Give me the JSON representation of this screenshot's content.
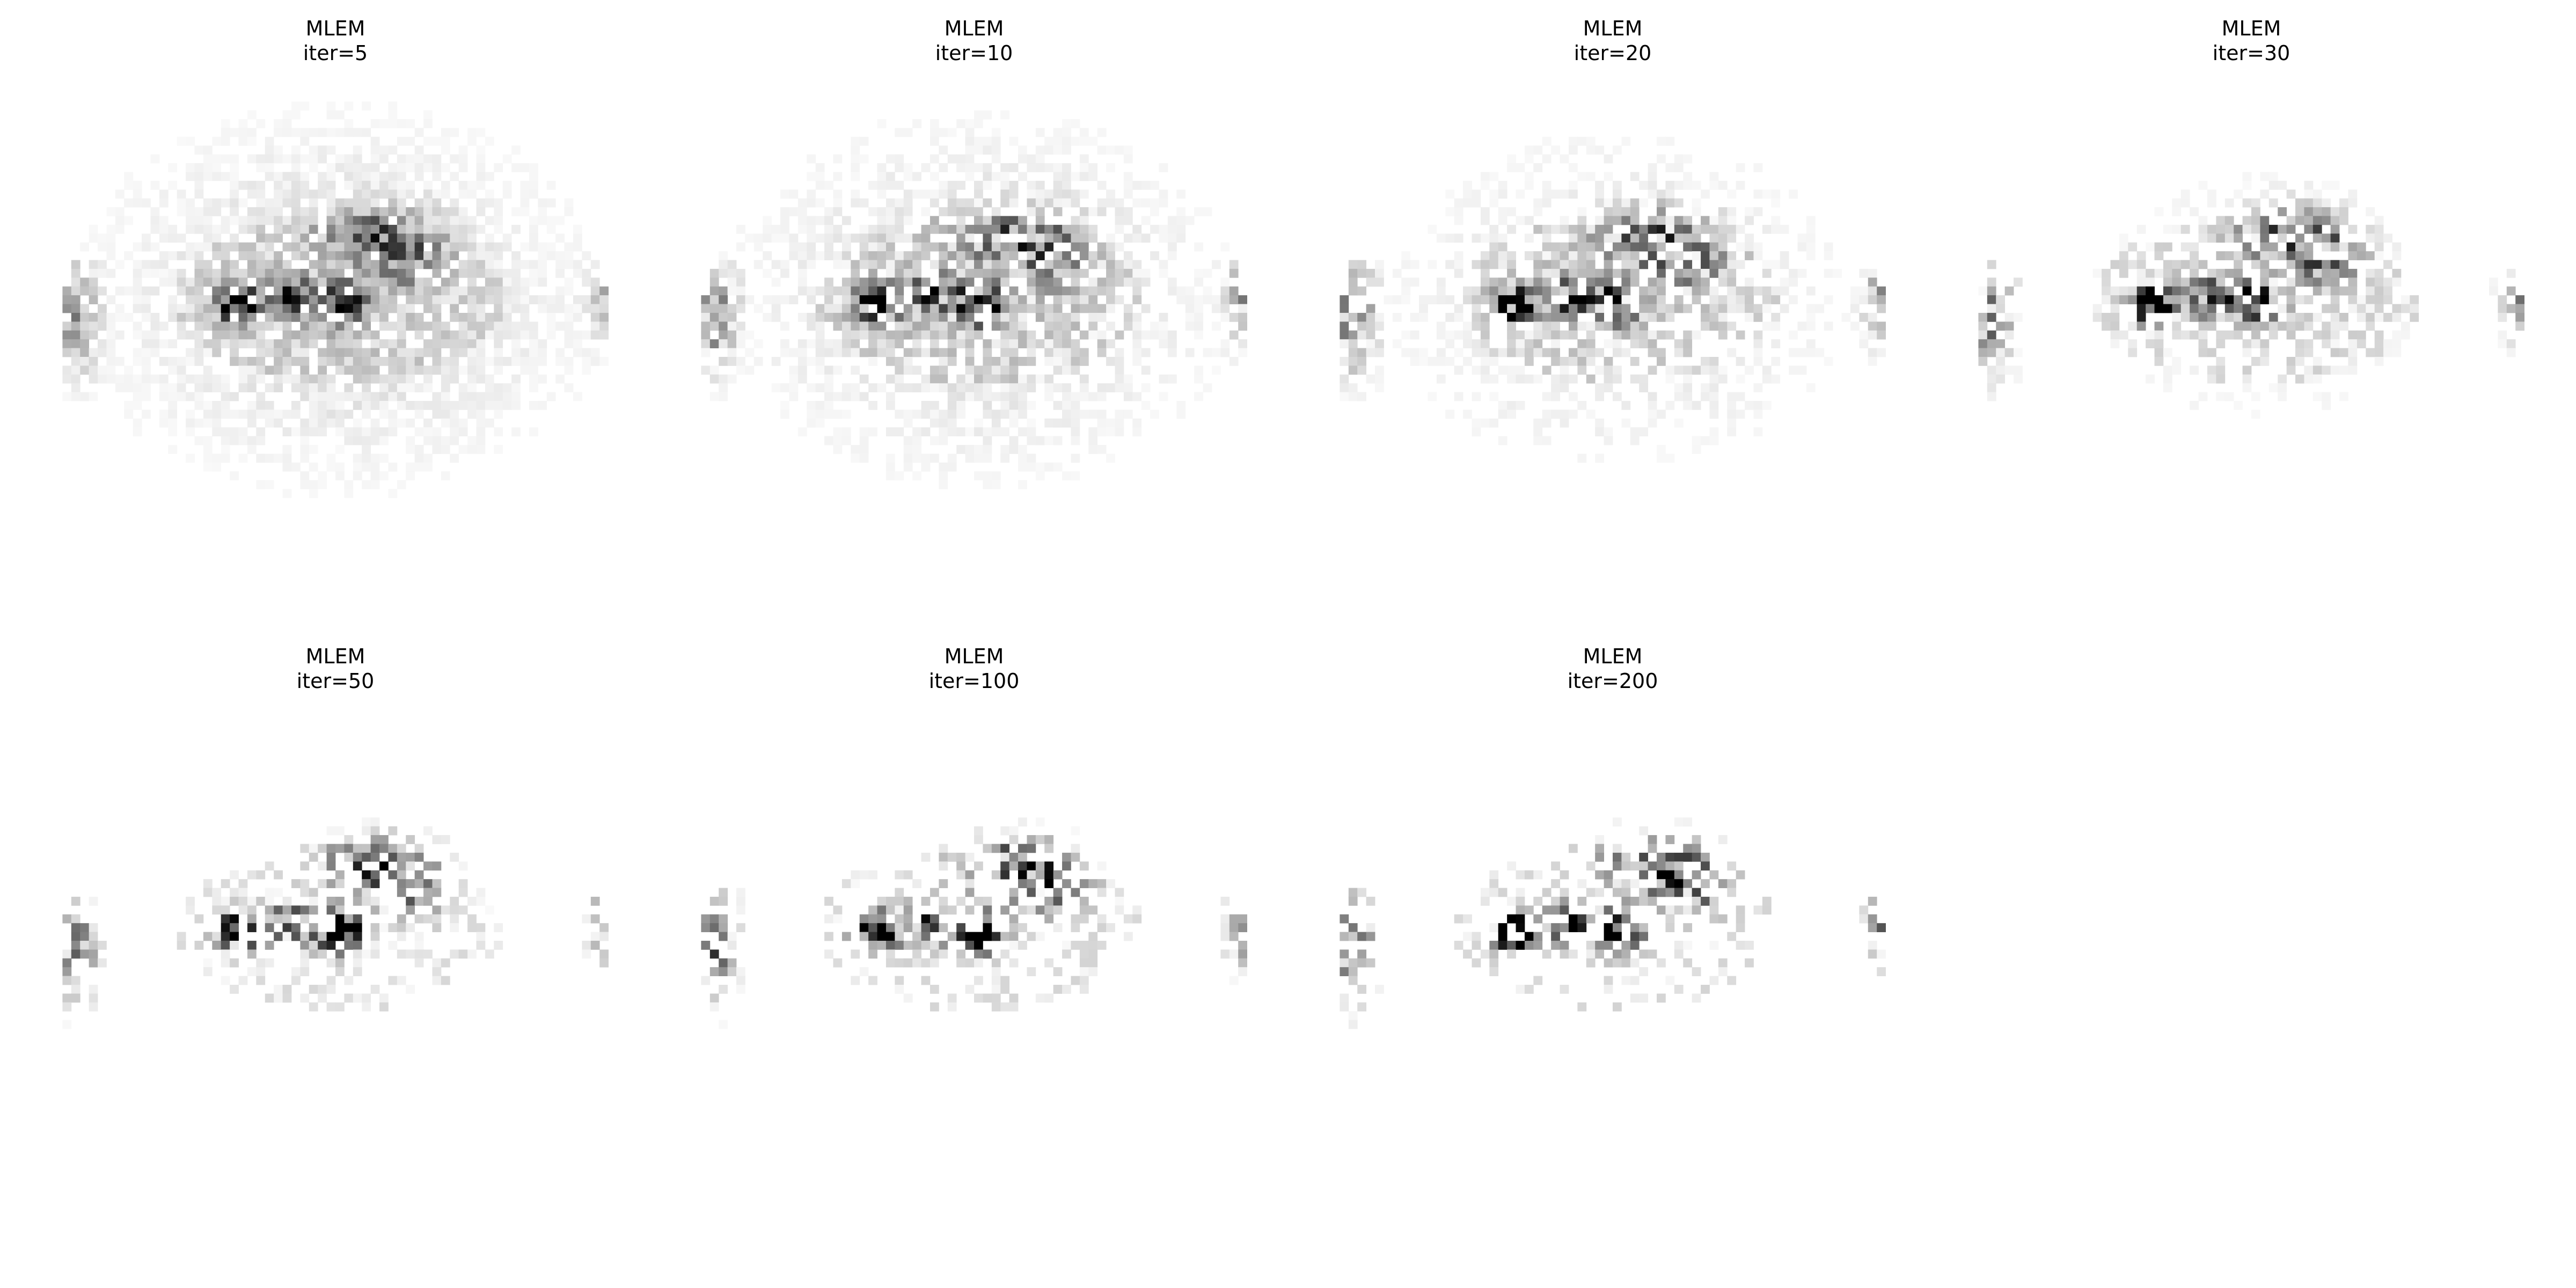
{
  "panels": [
    {
      "title_line1": "MLEM",
      "title_line2": "iter=5",
      "iterations": 5
    },
    {
      "title_line1": "MLEM",
      "title_line2": "iter=10",
      "iterations": 10
    },
    {
      "title_line1": "MLEM",
      "title_line2": "iter=20",
      "iterations": 20
    },
    {
      "title_line1": "MLEM",
      "title_line2": "iter=30",
      "iterations": 30
    },
    {
      "title_line1": "MLEM",
      "title_line2": "iter=50",
      "iterations": 50
    },
    {
      "title_line1": "MLEM",
      "title_line2": "iter=100",
      "iterations": 100
    },
    {
      "title_line1": "MLEM",
      "title_line2": "iter=200",
      "iterations": 200
    }
  ],
  "colormap": "gray_r",
  "background_color": "#ffffff"
}
